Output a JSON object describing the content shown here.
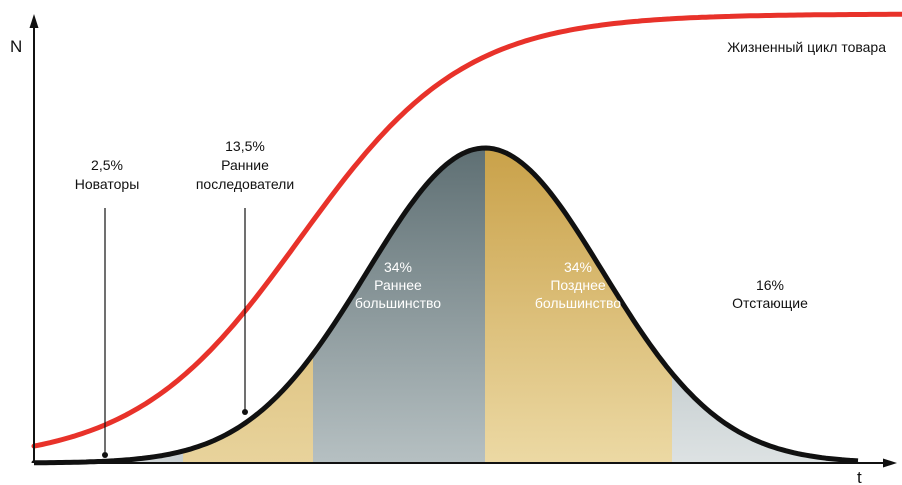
{
  "chart_data": {
    "type": "area",
    "xlabel": "t",
    "ylabel": "N",
    "curve_label": "Жизненный цикл товара",
    "segments": [
      {
        "percent": "2,5%",
        "name": "Новаторы"
      },
      {
        "percent": "13,5%",
        "name": "Ранние последователи"
      },
      {
        "percent": "34%",
        "name": "Раннее большинство"
      },
      {
        "percent": "34%",
        "name": "Позднее большинство"
      },
      {
        "percent": "16%",
        "name": "Отстающие"
      }
    ],
    "share_values": [
      2.5,
      13.5,
      34,
      34,
      16
    ],
    "colors": {
      "lifecycle_curve": "#e8322a",
      "bell_outline": "#111111",
      "early_majority": "#4f6a70",
      "late_majority": "#c99a2e",
      "light_band": "#d8b562",
      "laggards": "#b7c0c2"
    }
  }
}
